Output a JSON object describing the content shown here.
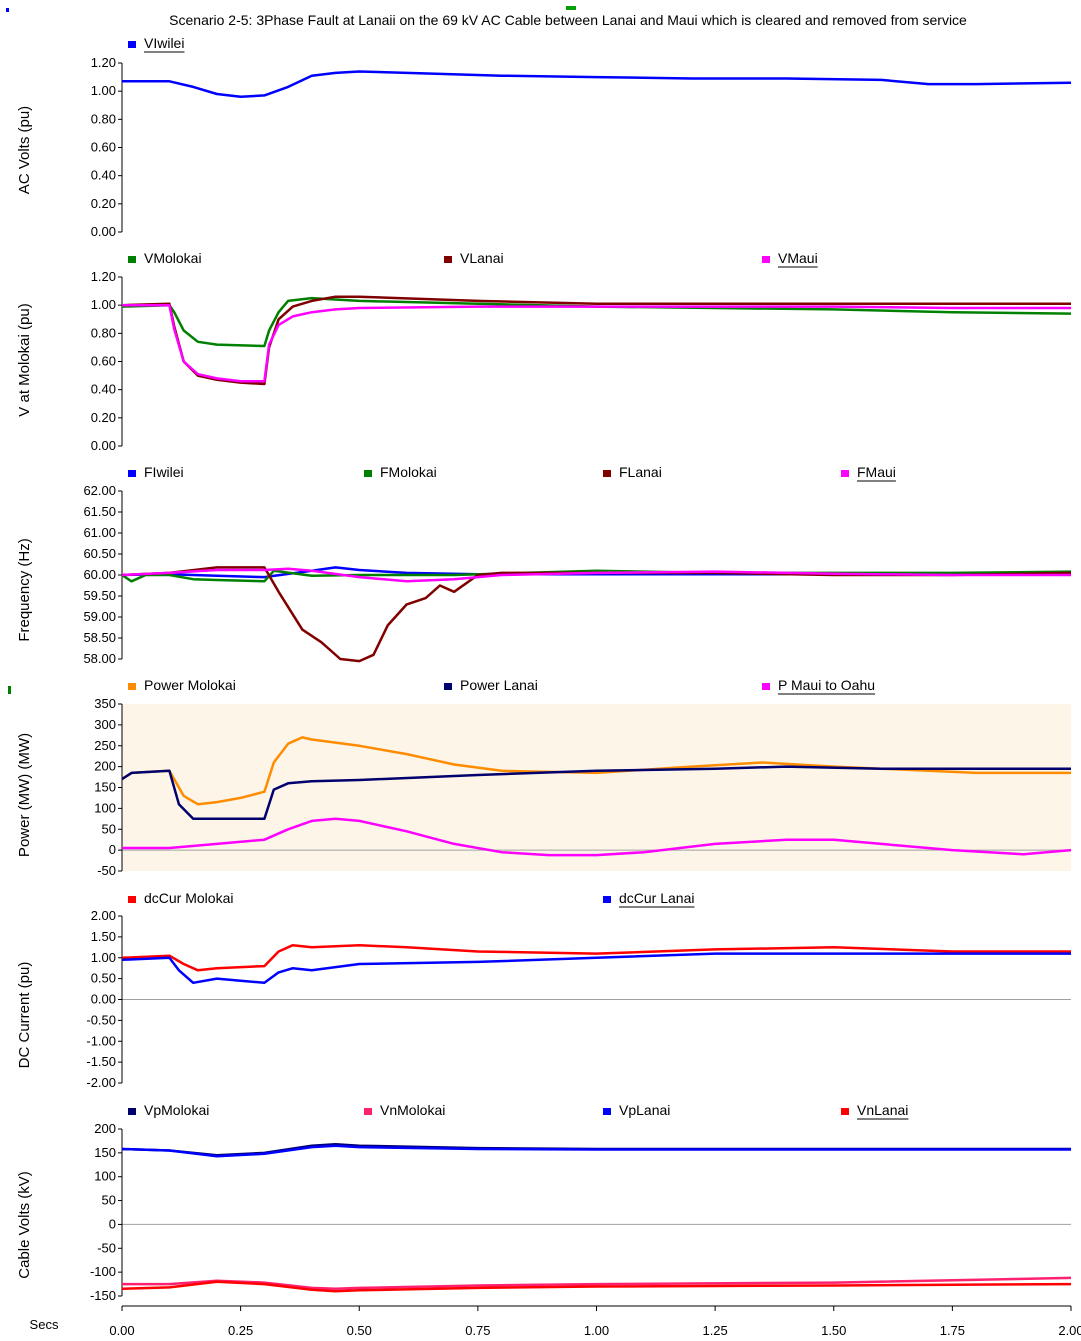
{
  "title": "Scenario 2-5: 3Phase Fault at Lanaii on the 69 kV AC Cable between Lanai and Maui which is cleared and removed from service",
  "x_axis": {
    "label": "Secs",
    "ticks": [
      "0.00",
      "0.25",
      "0.50",
      "0.75",
      "1.00",
      "1.25",
      "1.50",
      "1.75",
      "2.00"
    ],
    "range": [
      0,
      2
    ]
  },
  "colors": {
    "title_mark": "#00a000",
    "panel_mark": "#008000",
    "power_background": "#fdf6e8",
    "zero_line": "#a0a0a0"
  },
  "chart_data": [
    {
      "type": "line",
      "ylabel": "AC Volts (pu)",
      "ylim": [
        0,
        1.2
      ],
      "yticks": [
        "0.00",
        "0.20",
        "0.40",
        "0.60",
        "0.80",
        "1.00",
        "1.20"
      ],
      "series": [
        {
          "name": "VIwilei",
          "color": "#0000ff",
          "x": [
            0,
            0.1,
            0.15,
            0.2,
            0.25,
            0.3,
            0.35,
            0.4,
            0.45,
            0.5,
            0.6,
            0.8,
            1.0,
            1.2,
            1.4,
            1.6,
            1.7,
            1.8,
            2.0
          ],
          "y": [
            1.07,
            1.07,
            1.03,
            0.98,
            0.96,
            0.97,
            1.03,
            1.11,
            1.13,
            1.14,
            1.13,
            1.11,
            1.1,
            1.09,
            1.09,
            1.08,
            1.05,
            1.05,
            1.06
          ]
        }
      ]
    },
    {
      "type": "line",
      "ylabel": "V at Molokai (pu)",
      "ylim": [
        0,
        1.2
      ],
      "yticks": [
        "0.00",
        "0.20",
        "0.40",
        "0.60",
        "0.80",
        "1.00",
        "1.20"
      ],
      "series": [
        {
          "name": "VMolokai",
          "color": "#008000",
          "x": [
            0,
            0.1,
            0.11,
            0.13,
            0.16,
            0.2,
            0.3,
            0.31,
            0.33,
            0.35,
            0.4,
            0.5,
            0.75,
            1.0,
            1.25,
            1.5,
            1.75,
            2.0
          ],
          "y": [
            0.99,
            1.0,
            0.95,
            0.82,
            0.74,
            0.72,
            0.71,
            0.82,
            0.95,
            1.03,
            1.05,
            1.03,
            1.01,
            0.99,
            0.98,
            0.97,
            0.95,
            0.94
          ]
        },
        {
          "name": "VLanai",
          "color": "#800000",
          "x": [
            0,
            0.1,
            0.11,
            0.13,
            0.16,
            0.2,
            0.25,
            0.3,
            0.31,
            0.33,
            0.36,
            0.4,
            0.45,
            0.5,
            0.75,
            1.0,
            1.25,
            1.5,
            1.75,
            2.0
          ],
          "y": [
            1.0,
            1.01,
            0.85,
            0.6,
            0.5,
            0.47,
            0.45,
            0.44,
            0.7,
            0.9,
            0.99,
            1.03,
            1.06,
            1.06,
            1.03,
            1.01,
            1.01,
            1.01,
            1.01,
            1.01
          ]
        },
        {
          "name": "VMaui",
          "color": "#ff00ff",
          "x": [
            0,
            0.1,
            0.11,
            0.13,
            0.16,
            0.2,
            0.25,
            0.3,
            0.31,
            0.33,
            0.36,
            0.4,
            0.45,
            0.5,
            0.75,
            1.0,
            1.25,
            1.5,
            1.75,
            2.0
          ],
          "y": [
            1.0,
            1.0,
            0.83,
            0.6,
            0.51,
            0.48,
            0.46,
            0.46,
            0.72,
            0.86,
            0.92,
            0.95,
            0.97,
            0.98,
            0.99,
            0.99,
            0.99,
            0.99,
            0.98,
            0.98
          ]
        }
      ]
    },
    {
      "type": "line",
      "ylabel": "Frequency (Hz)",
      "ylim": [
        58,
        62
      ],
      "yticks": [
        "58.00",
        "58.50",
        "59.00",
        "59.50",
        "60.00",
        "60.50",
        "61.00",
        "61.50",
        "62.00"
      ],
      "series": [
        {
          "name": "FIwilei",
          "color": "#0000ff",
          "x": [
            0,
            0.1,
            0.2,
            0.3,
            0.4,
            0.45,
            0.5,
            0.6,
            0.75,
            1.0,
            1.5,
            2.0
          ],
          "y": [
            60.0,
            60.02,
            59.98,
            59.95,
            60.1,
            60.18,
            60.12,
            60.05,
            60.02,
            60.02,
            60.02,
            60.02
          ]
        },
        {
          "name": "FMolokai",
          "color": "#008000",
          "x": [
            0,
            0.02,
            0.05,
            0.1,
            0.15,
            0.2,
            0.3,
            0.32,
            0.4,
            0.5,
            0.7,
            1.0,
            1.25,
            1.5,
            1.75,
            2.0
          ],
          "y": [
            60.0,
            59.85,
            60.0,
            60.0,
            59.9,
            59.88,
            59.85,
            60.1,
            59.98,
            60.0,
            60.0,
            60.1,
            60.05,
            60.05,
            60.05,
            60.08
          ]
        },
        {
          "name": "FLanai",
          "color": "#800000",
          "x": [
            0,
            0.1,
            0.2,
            0.3,
            0.33,
            0.38,
            0.42,
            0.46,
            0.5,
            0.53,
            0.56,
            0.6,
            0.64,
            0.67,
            0.7,
            0.75,
            0.8,
            1.0,
            1.25,
            1.5,
            1.75,
            2.0
          ],
          "y": [
            60.0,
            60.05,
            60.18,
            60.18,
            59.6,
            58.7,
            58.4,
            58.0,
            57.95,
            58.1,
            58.8,
            59.3,
            59.45,
            59.75,
            59.6,
            60.0,
            60.05,
            60.05,
            60.05,
            60.0,
            60.0,
            60.05
          ]
        },
        {
          "name": "FMaui",
          "color": "#ff00ff",
          "x": [
            0,
            0.1,
            0.2,
            0.3,
            0.35,
            0.4,
            0.5,
            0.6,
            0.7,
            0.8,
            1.0,
            1.25,
            1.5,
            1.75,
            2.0
          ],
          "y": [
            60.0,
            60.05,
            60.12,
            60.12,
            60.15,
            60.1,
            59.95,
            59.85,
            59.9,
            60.0,
            60.05,
            60.08,
            60.03,
            60.0,
            60.0
          ]
        }
      ]
    },
    {
      "type": "line",
      "ylabel": "Power (MW) (MW)",
      "ylim": [
        -50,
        350
      ],
      "yticks": [
        "-50",
        "0",
        "50",
        "100",
        "150",
        "200",
        "250",
        "300",
        "350"
      ],
      "series": [
        {
          "name": "Power Molokai",
          "color": "#ff8c00",
          "x": [
            0,
            0.02,
            0.1,
            0.13,
            0.16,
            0.2,
            0.25,
            0.3,
            0.32,
            0.35,
            0.38,
            0.4,
            0.5,
            0.6,
            0.7,
            0.8,
            1.0,
            1.2,
            1.35,
            1.5,
            1.7,
            1.8,
            2.0
          ],
          "y": [
            170,
            185,
            190,
            130,
            110,
            115,
            125,
            140,
            210,
            255,
            270,
            265,
            250,
            230,
            205,
            190,
            185,
            200,
            210,
            200,
            190,
            185,
            185
          ]
        },
        {
          "name": "Power Lanai",
          "color": "#00006e",
          "x": [
            0,
            0.02,
            0.1,
            0.12,
            0.15,
            0.2,
            0.25,
            0.3,
            0.32,
            0.35,
            0.4,
            0.5,
            0.75,
            1.0,
            1.25,
            1.4,
            1.6,
            1.75,
            2.0
          ],
          "y": [
            170,
            185,
            190,
            110,
            75,
            75,
            75,
            75,
            145,
            160,
            165,
            168,
            180,
            190,
            195,
            200,
            195,
            195,
            195
          ]
        },
        {
          "name": "P Maui to Oahu",
          "color": "#ff00ff",
          "x": [
            0,
            0.1,
            0.2,
            0.3,
            0.35,
            0.4,
            0.45,
            0.5,
            0.6,
            0.7,
            0.8,
            0.9,
            1.0,
            1.1,
            1.25,
            1.4,
            1.5,
            1.6,
            1.75,
            1.9,
            2.0
          ],
          "y": [
            5,
            5,
            15,
            25,
            50,
            70,
            75,
            70,
            45,
            15,
            -5,
            -12,
            -12,
            -5,
            15,
            25,
            25,
            15,
            0,
            -10,
            0
          ]
        }
      ]
    },
    {
      "type": "line",
      "ylabel": "DC Current (pu)",
      "ylim": [
        -2,
        2
      ],
      "yticks": [
        "-2.00",
        "-1.50",
        "-1.00",
        "-0.50",
        "0.00",
        "0.50",
        "1.00",
        "1.50",
        "2.00"
      ],
      "series": [
        {
          "name": "dcCur Molokai",
          "color": "#ff0000",
          "x": [
            0,
            0.1,
            0.13,
            0.16,
            0.2,
            0.3,
            0.33,
            0.36,
            0.4,
            0.5,
            0.6,
            0.75,
            1.0,
            1.25,
            1.5,
            1.75,
            2.0
          ],
          "y": [
            1.0,
            1.05,
            0.85,
            0.7,
            0.75,
            0.8,
            1.15,
            1.3,
            1.25,
            1.3,
            1.25,
            1.15,
            1.1,
            1.2,
            1.25,
            1.15,
            1.15
          ]
        },
        {
          "name": "dcCur Lanai",
          "color": "#0000ff",
          "x": [
            0,
            0.1,
            0.12,
            0.15,
            0.2,
            0.25,
            0.3,
            0.33,
            0.36,
            0.4,
            0.5,
            0.75,
            1.0,
            1.25,
            1.5,
            2.0
          ],
          "y": [
            0.95,
            1.0,
            0.7,
            0.4,
            0.5,
            0.45,
            0.4,
            0.65,
            0.75,
            0.7,
            0.85,
            0.9,
            1.0,
            1.1,
            1.1,
            1.1
          ]
        }
      ]
    },
    {
      "type": "line",
      "ylabel": "Cable Volts (kV)",
      "ylim": [
        -150,
        200
      ],
      "yticks": [
        "-150",
        "-100",
        "-50",
        "0",
        "50",
        "100",
        "150",
        "200"
      ],
      "series": [
        {
          "name": "VpMolokai",
          "color": "#00006e",
          "x": [
            0,
            0.1,
            0.2,
            0.3,
            0.4,
            0.45,
            0.5,
            0.75,
            1.0,
            1.5,
            2.0
          ],
          "y": [
            158,
            155,
            145,
            150,
            165,
            168,
            165,
            160,
            158,
            158,
            158
          ]
        },
        {
          "name": "VnMolokai",
          "color": "#ff2070",
          "x": [
            0,
            0.1,
            0.2,
            0.3,
            0.4,
            0.45,
            0.5,
            0.75,
            1.0,
            1.5,
            2.0
          ],
          "y": [
            -125,
            -125,
            -118,
            -122,
            -133,
            -135,
            -133,
            -128,
            -125,
            -122,
            -112
          ]
        },
        {
          "name": "VpLanai",
          "color": "#0000ff",
          "x": [
            0,
            0.1,
            0.2,
            0.3,
            0.4,
            0.45,
            0.5,
            0.75,
            1.0,
            1.5,
            2.0
          ],
          "y": [
            158,
            155,
            143,
            148,
            162,
            165,
            162,
            158,
            157,
            157,
            157
          ]
        },
        {
          "name": "VnLanai",
          "color": "#ff0000",
          "x": [
            0,
            0.1,
            0.2,
            0.3,
            0.4,
            0.45,
            0.5,
            0.75,
            1.0,
            1.5,
            2.0
          ],
          "y": [
            -135,
            -132,
            -120,
            -125,
            -137,
            -140,
            -138,
            -133,
            -130,
            -128,
            -125
          ]
        }
      ]
    }
  ]
}
